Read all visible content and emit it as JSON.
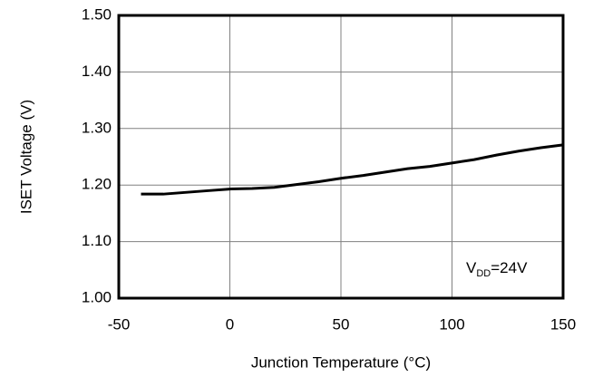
{
  "chart_data": {
    "type": "line",
    "x_label": "Junction Temperature (°C)",
    "y_label": "ISET Voltage (V)",
    "annotation": [
      "V",
      "DD",
      "=24V"
    ],
    "x": [
      -40,
      -30,
      -20,
      -10,
      0,
      10,
      20,
      30,
      40,
      50,
      60,
      70,
      80,
      90,
      100,
      110,
      120,
      130,
      140,
      150
    ],
    "series": [
      {
        "color": "#000000",
        "values": [
          1.184,
          1.184,
          1.187,
          1.19,
          1.193,
          1.194,
          1.196,
          1.201,
          1.206,
          1.212,
          1.217,
          1.223,
          1.229,
          1.233,
          1.239,
          1.245,
          1.253,
          1.26,
          1.266,
          1.271
        ]
      }
    ],
    "xlim": [
      -50,
      150
    ],
    "xticks": [
      -50,
      0,
      50,
      100,
      150
    ],
    "ylim": [
      1.0,
      1.5
    ],
    "yticks": [
      {
        "value": 1.0,
        "label": "1.00"
      },
      {
        "value": 1.1,
        "label": "1.10"
      },
      {
        "value": 1.2,
        "label": "1.20"
      },
      {
        "value": 1.3,
        "label": "1.30"
      },
      {
        "value": 1.4,
        "label": "1.40"
      },
      {
        "value": 1.5,
        "label": "1.50"
      }
    ],
    "grid": true
  }
}
